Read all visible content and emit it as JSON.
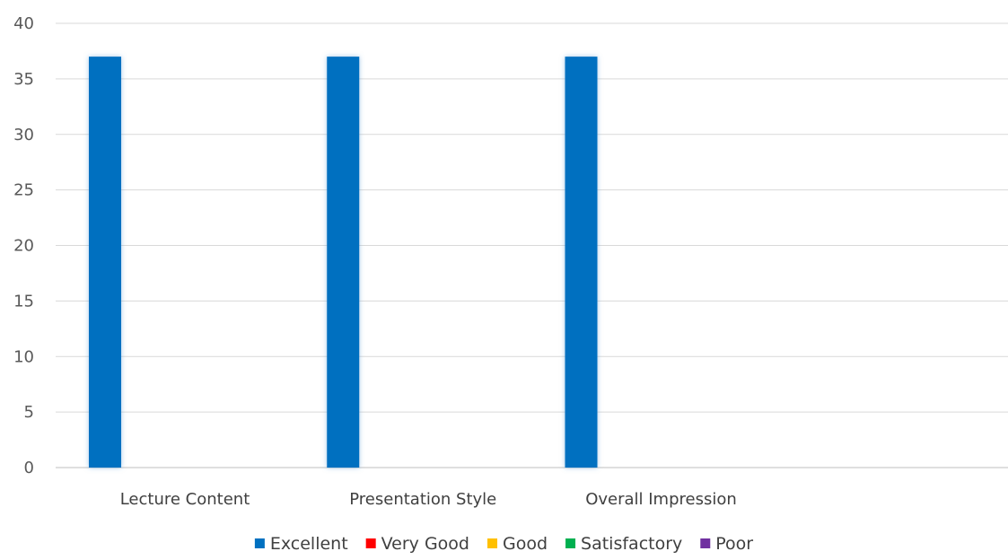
{
  "chart_data": {
    "type": "bar",
    "categories": [
      "Lecture Content",
      "Presentation Style",
      "Overall Impression",
      ""
    ],
    "series": [
      {
        "name": "Excellent",
        "color": "#0070C0",
        "values": [
          37,
          37,
          37,
          0
        ]
      },
      {
        "name": "Very Good",
        "color": "#FF0000",
        "values": [
          0,
          0,
          0,
          0
        ]
      },
      {
        "name": "Good",
        "color": "#FFC000",
        "values": [
          0,
          0,
          0,
          0
        ]
      },
      {
        "name": "Satisfactory",
        "color": "#00B050",
        "values": [
          0,
          0,
          0,
          0
        ]
      },
      {
        "name": "Poor",
        "color": "#7030A0",
        "values": [
          0,
          0,
          0,
          0
        ]
      }
    ],
    "yticks": [
      "0",
      "5",
      "10",
      "15",
      "20",
      "25",
      "30",
      "35",
      "40"
    ],
    "ylim": [
      0,
      40
    ],
    "grid": true,
    "legend_position": "bottom"
  }
}
